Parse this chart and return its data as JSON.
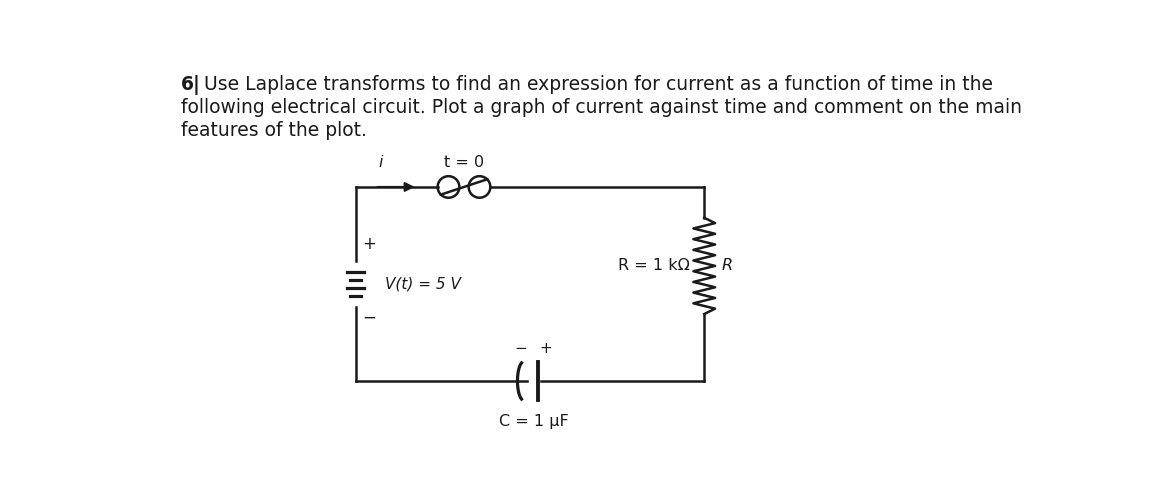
{
  "bg_color": "#ffffff",
  "text_color": "#1a1a1a",
  "q_num": "6|",
  "q_line1": "   Use Laplace transforms to find an expression for current as a function of time in the",
  "q_line2": "following electrical circuit. Plot a graph of current against time and comment on the main",
  "q_line3": "features of the plot.",
  "lbl_i": "i",
  "lbl_t0": "t = 0",
  "lbl_Vt": "V(t) = 5 V",
  "lbl_R_eq": "R = 1 kΩ",
  "lbl_R": "R",
  "lbl_plus": "+",
  "lbl_minus": "−",
  "lbl_plus_cap": "+",
  "lbl_minus_cap": "−",
  "lbl_C": "C = 1 μF",
  "fontsize_text": 13.5,
  "fontsize_circuit": 11.5
}
